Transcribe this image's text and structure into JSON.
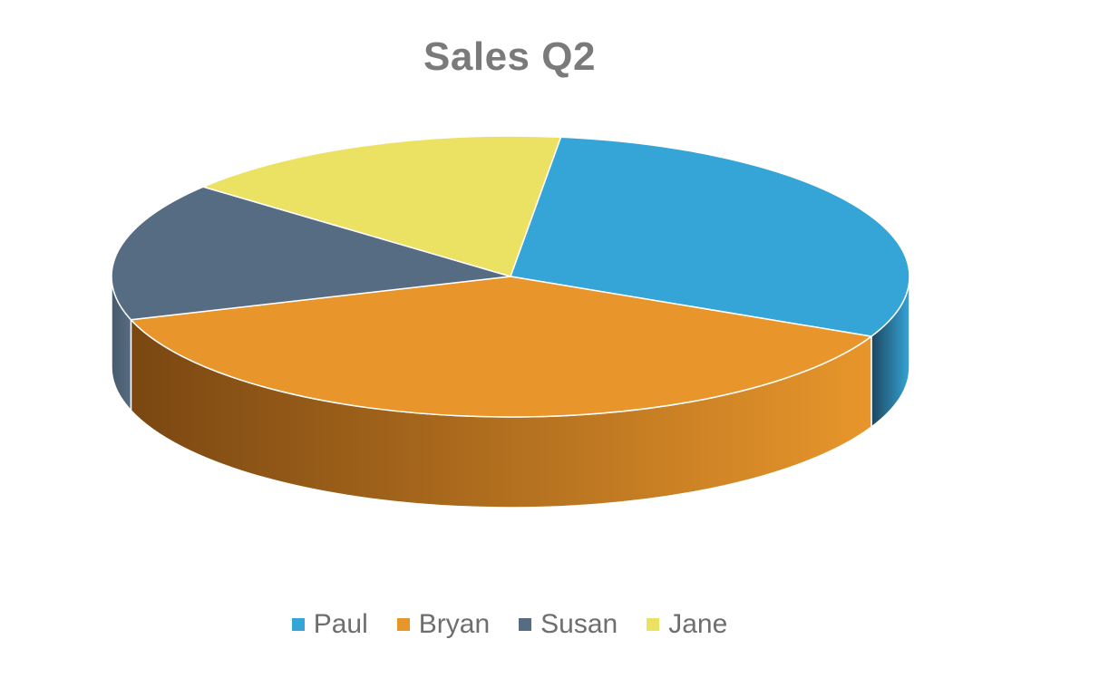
{
  "chart_data": {
    "type": "pie",
    "title": "Sales Q2",
    "categories": [
      "Paul",
      "Bryan",
      "Susan",
      "Jane"
    ],
    "values": [
      30,
      38,
      16,
      16
    ],
    "unit": "percent of total",
    "colors": [
      "#35a4d6",
      "#e8962b",
      "#566c82",
      "#ebe263"
    ],
    "side_colors": [
      "#1d4660",
      "#7a4712",
      "#485a6b",
      "#ebe263"
    ],
    "style": "3d-exploded-perspective",
    "legend_position": "bottom"
  }
}
